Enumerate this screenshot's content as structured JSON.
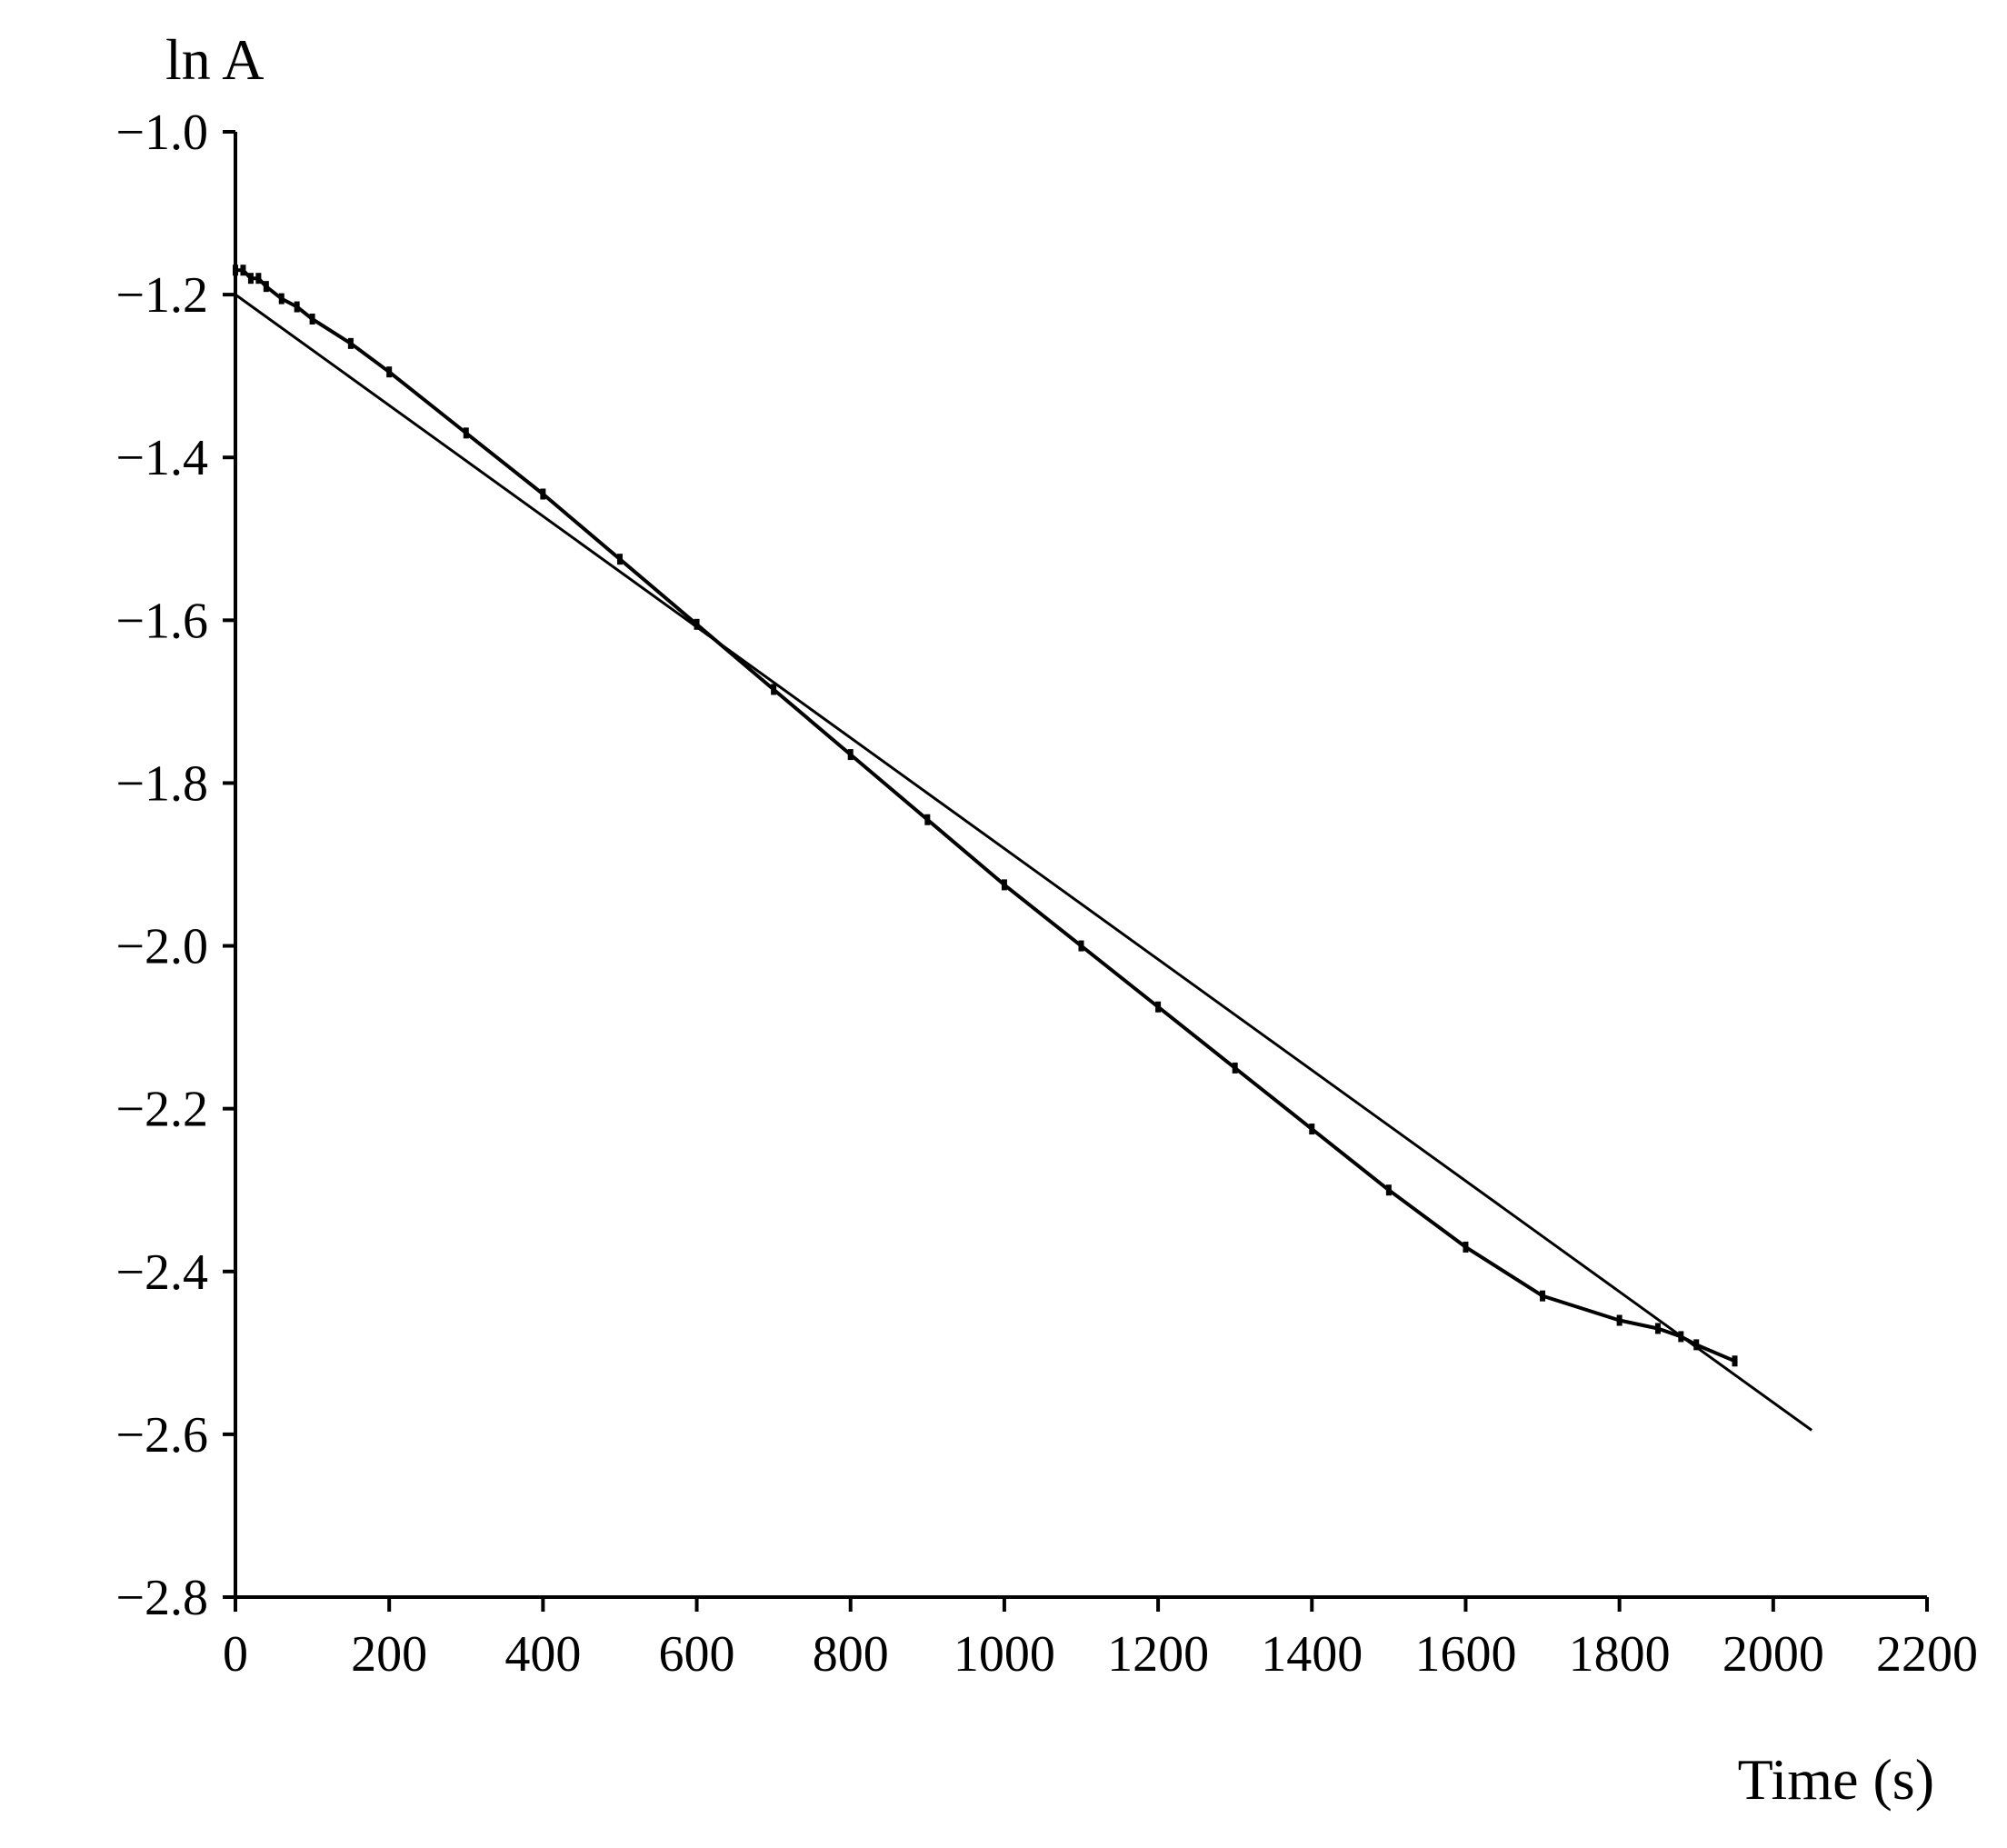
{
  "chart_data": {
    "type": "line",
    "title": "",
    "xlabel": "Time (s)",
    "ylabel": "ln A",
    "xlim": [
      0,
      2200
    ],
    "ylim": [
      -2.8,
      -1.0
    ],
    "xticks": [
      0,
      200,
      400,
      600,
      800,
      1000,
      1200,
      1400,
      1600,
      1800,
      2000,
      2200
    ],
    "yticks": [
      -1.0,
      -1.2,
      -1.4,
      -1.6,
      -1.8,
      -2.0,
      -2.2,
      -2.4,
      -2.6,
      -2.8
    ],
    "xtick_labels": [
      "0",
      "200",
      "400",
      "600",
      "800",
      "1000",
      "1200",
      "1400",
      "1600",
      "1800",
      "2000",
      "2200"
    ],
    "ytick_labels": [
      "−1.0",
      "−1.2",
      "−1.4",
      "−1.6",
      "−1.8",
      "−2.0",
      "−2.2",
      "−2.4",
      "−2.6",
      "−2.8"
    ],
    "grid": false,
    "legend": "none",
    "series": [
      {
        "kind": "measured",
        "x": [
          0,
          10,
          20,
          30,
          40,
          60,
          80,
          100,
          150,
          200,
          300,
          400,
          500,
          600,
          700,
          800,
          900,
          1000,
          1100,
          1200,
          1300,
          1400,
          1500,
          1600,
          1700,
          1800,
          1850,
          1880,
          1900,
          1950
        ],
        "y": [
          -1.17,
          -1.17,
          -1.18,
          -1.18,
          -1.19,
          -1.205,
          -1.215,
          -1.23,
          -1.26,
          -1.295,
          -1.37,
          -1.445,
          -1.525,
          -1.605,
          -1.685,
          -1.765,
          -1.845,
          -1.925,
          -2.0,
          -2.075,
          -2.15,
          -2.225,
          -2.3,
          -2.37,
          -2.43,
          -2.46,
          -2.47,
          -2.48,
          -2.49,
          -2.51
        ]
      },
      {
        "kind": "fit",
        "x": [
          0,
          2050
        ],
        "y": [
          -1.2,
          -2.595
        ]
      }
    ]
  }
}
